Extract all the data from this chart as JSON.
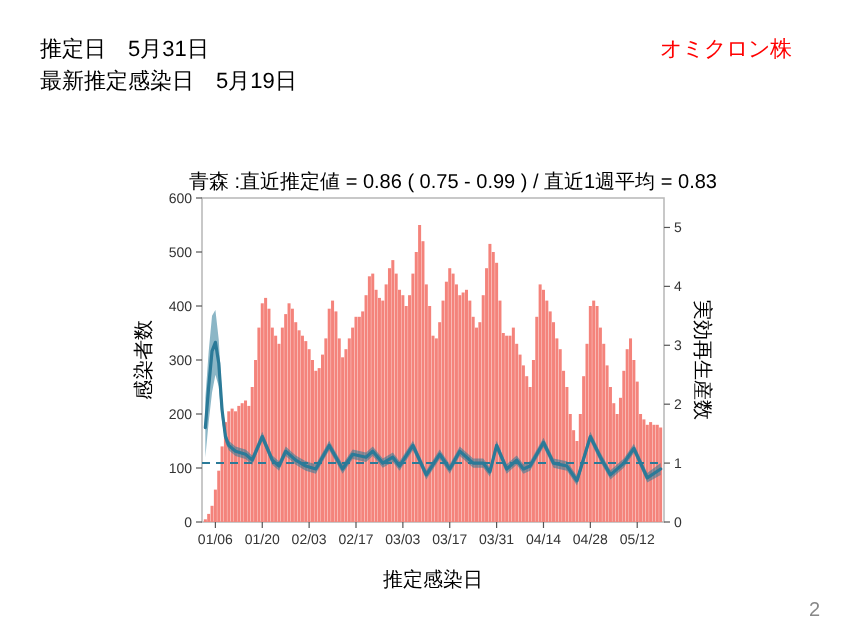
{
  "chart_data": {
    "type": "bar",
    "title": "青森 :直近推定値 = 0.86 ( 0.75 - 0.99 ) / 直近1週平均 = 0.83",
    "xlabel": "推定感染日",
    "ylabel": "感染者数",
    "y2label": "実効再生産数",
    "annotations": [
      "推定日　5月31日",
      "最新推定感染日　5月19日",
      "オミクロン株",
      "2"
    ],
    "x": [
      "--01-03",
      "--01-04",
      "--01-05",
      "--01-06",
      "--01-07",
      "--01-08",
      "--01-09",
      "--01-10",
      "--01-11",
      "--01-12",
      "--01-13",
      "--01-14",
      "--01-15",
      "--01-16",
      "--01-17",
      "--01-18",
      "--01-19",
      "--01-20",
      "--01-21",
      "--01-22",
      "--01-23",
      "--01-24",
      "--01-25",
      "--01-26",
      "--01-27",
      "--01-28",
      "--01-29",
      "--01-30",
      "--01-31",
      "--02-01",
      "--02-02",
      "--02-03",
      "--02-04",
      "--02-05",
      "--02-06",
      "--02-07",
      "--02-08",
      "--02-09",
      "--02-10",
      "--02-11",
      "--02-12",
      "--02-13",
      "--02-14",
      "--02-15",
      "--02-16",
      "--02-17",
      "--02-18",
      "--02-19",
      "--02-20",
      "--02-21",
      "--02-22",
      "--02-23",
      "--02-24",
      "--02-25",
      "--02-26",
      "--02-27",
      "--02-28",
      "--03-01",
      "--03-02",
      "--03-03",
      "--03-04",
      "--03-05",
      "--03-06",
      "--03-07",
      "--03-08",
      "--03-09",
      "--03-10",
      "--03-11",
      "--03-12",
      "--03-13",
      "--03-14",
      "--03-15",
      "--03-16",
      "--03-17",
      "--03-18",
      "--03-19",
      "--03-20",
      "--03-21",
      "--03-22",
      "--03-23",
      "--03-24",
      "--03-25",
      "--03-26",
      "--03-27",
      "--03-28",
      "--03-29",
      "--03-30",
      "--03-31",
      "--04-01",
      "--04-02",
      "--04-03",
      "--04-04",
      "--04-05",
      "--04-06",
      "--04-07",
      "--04-08",
      "--04-09",
      "--04-10",
      "--04-11",
      "--04-12",
      "--04-13",
      "--04-14",
      "--04-15",
      "--04-16",
      "--04-17",
      "--04-18",
      "--04-19",
      "--04-20",
      "--04-21",
      "--04-22",
      "--04-23",
      "--04-24",
      "--04-25",
      "--04-26",
      "--04-27",
      "--04-28",
      "--04-29",
      "--04-30",
      "--05-01",
      "--05-02",
      "--05-03",
      "--05-04",
      "--05-05",
      "--05-06",
      "--05-07",
      "--05-08",
      "--05-09",
      "--05-10",
      "--05-11",
      "--05-12",
      "--05-13",
      "--05-14",
      "--05-15",
      "--05-16",
      "--05-17",
      "--05-18",
      "--05-19"
    ],
    "series": [
      {
        "color": "#f4837b",
        "values": [
          5,
          15,
          30,
          60,
          95,
          140,
          185,
          205,
          210,
          205,
          215,
          220,
          225,
          215,
          250,
          300,
          360,
          405,
          415,
          395,
          360,
          345,
          330,
          360,
          385,
          405,
          395,
          370,
          355,
          345,
          335,
          320,
          300,
          280,
          285,
          310,
          340,
          395,
          410,
          390,
          340,
          305,
          320,
          340,
          360,
          380,
          380,
          390,
          420,
          455,
          460,
          430,
          415,
          410,
          440,
          470,
          485,
          460,
          430,
          420,
          400,
          420,
          460,
          500,
          550,
          520,
          440,
          400,
          345,
          340,
          370,
          410,
          445,
          470,
          460,
          440,
          420,
          425,
          430,
          410,
          380,
          360,
          370,
          420,
          470,
          515,
          500,
          480,
          410,
          350,
          345,
          345,
          360,
          330,
          310,
          290,
          270,
          250,
          300,
          380,
          440,
          430,
          410,
          390,
          370,
          340,
          320,
          280,
          250,
          200,
          170,
          150,
          200,
          270,
          330,
          400,
          410,
          400,
          360,
          330,
          290,
          250,
          220,
          200,
          230,
          280,
          320,
          340,
          300,
          260,
          200,
          190,
          180,
          185,
          180,
          180,
          175
        ]
      },
      {
        "type": "line",
        "axis": "y2",
        "color": "#2b7a98",
        "x": [
          "--01-03",
          "--01-04",
          "--01-05",
          "--01-06",
          "--01-07",
          "--01-08",
          "--01-09",
          "--01-10",
          "--01-12",
          "--01-15",
          "--01-17",
          "--01-20",
          "--01-23",
          "--01-25",
          "--01-27",
          "--01-30",
          "--02-02",
          "--02-05",
          "--02-09",
          "--02-13",
          "--02-16",
          "--02-20",
          "--02-22",
          "--02-25",
          "--02-28",
          "--03-02",
          "--03-06",
          "--03-10",
          "--03-14",
          "--03-17",
          "--03-20",
          "--03-24",
          "--03-27",
          "--03-29",
          "--03-31",
          "--04-03",
          "--04-06",
          "--04-08",
          "--04-10",
          "--04-14",
          "--04-17",
          "--04-21",
          "--04-24",
          "--04-28",
          "--05-01",
          "--05-04",
          "--05-08",
          "--05-11",
          "--05-15",
          "--05-19"
        ],
        "values": [
          1.6,
          2.3,
          2.9,
          3.05,
          2.7,
          1.9,
          1.45,
          1.3,
          1.2,
          1.15,
          1.05,
          1.45,
          1.05,
          0.95,
          1.2,
          1.05,
          0.95,
          0.9,
          1.3,
          0.9,
          1.15,
          1.1,
          1.2,
          1.0,
          1.1,
          0.95,
          1.3,
          0.8,
          1.15,
          0.9,
          1.2,
          1.0,
          1.0,
          0.85,
          1.3,
          0.9,
          1.05,
          0.9,
          0.95,
          1.35,
          1.0,
          0.95,
          0.7,
          1.45,
          1.1,
          0.8,
          1.0,
          1.25,
          0.75,
          0.9
        ],
        "lower": [
          1.1,
          1.7,
          2.2,
          2.5,
          2.3,
          1.7,
          1.35,
          1.22,
          1.12,
          1.07,
          0.97,
          1.37,
          0.97,
          0.87,
          1.12,
          0.97,
          0.87,
          0.82,
          1.22,
          0.82,
          1.07,
          1.02,
          1.12,
          0.92,
          1.02,
          0.87,
          1.22,
          0.72,
          1.07,
          0.82,
          1.12,
          0.92,
          0.92,
          0.77,
          1.22,
          0.82,
          0.97,
          0.82,
          0.87,
          1.27,
          0.92,
          0.87,
          0.62,
          1.37,
          1.02,
          0.72,
          0.92,
          1.17,
          0.67,
          0.8
        ],
        "upper": [
          2.1,
          2.9,
          3.5,
          3.6,
          3.1,
          2.1,
          1.55,
          1.38,
          1.28,
          1.23,
          1.13,
          1.53,
          1.13,
          1.03,
          1.28,
          1.13,
          1.03,
          0.98,
          1.38,
          0.98,
          1.23,
          1.18,
          1.28,
          1.08,
          1.18,
          1.03,
          1.38,
          0.88,
          1.23,
          0.98,
          1.28,
          1.08,
          1.08,
          0.93,
          1.38,
          0.98,
          1.13,
          0.98,
          1.03,
          1.43,
          1.08,
          1.03,
          0.78,
          1.53,
          1.18,
          0.88,
          1.08,
          1.33,
          0.83,
          1.0
        ]
      }
    ],
    "xlim": [
      "--01-02",
      "--05-20"
    ],
    "xticks": [
      {
        "value": "--01-06",
        "label": "01/06"
      },
      {
        "value": "--01-20",
        "label": "01/20"
      },
      {
        "value": "--02-03",
        "label": "02/03"
      },
      {
        "value": "--02-17",
        "label": "02/17"
      },
      {
        "value": "--03-03",
        "label": "03/03"
      },
      {
        "value": "--03-17",
        "label": "03/17"
      },
      {
        "value": "--03-31",
        "label": "03/31"
      },
      {
        "value": "--04-14",
        "label": "04/14"
      },
      {
        "value": "--04-28",
        "label": "04/28"
      },
      {
        "value": "--05-12",
        "label": "05/12"
      }
    ],
    "ylim": [
      0,
      600
    ],
    "yticks": [
      0,
      100,
      200,
      300,
      400,
      500,
      600
    ],
    "y2lim": [
      0,
      5.5
    ],
    "y2ticks": [
      0,
      1,
      2,
      3,
      4,
      5
    ],
    "ref_lines": [
      {
        "axis": "y2",
        "value": 1,
        "color": "#2b7a98",
        "line_style": "dashed"
      }
    ]
  }
}
